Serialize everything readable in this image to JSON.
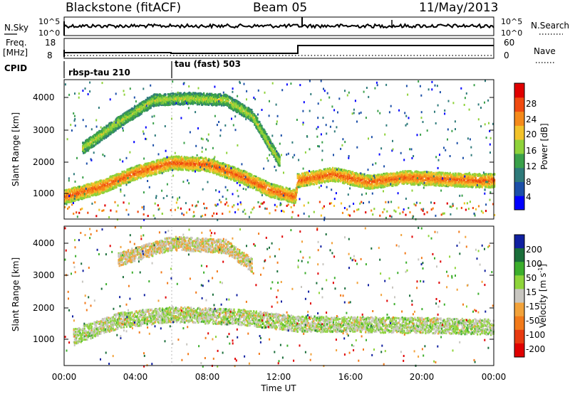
{
  "header": {
    "station": "Blackstone (fitACF)",
    "beam": "Beam 05",
    "date": "11/May/2013"
  },
  "summary_panel": {
    "nsky_label": "N.Sky",
    "nsearch_label": "N.Search",
    "noise_ticks": [
      "10^5",
      "10^0"
    ],
    "freq_label_1": "Freq.",
    "freq_label_2": "[MHz]",
    "freq_ticks": [
      "18",
      "8"
    ],
    "nave_label": "Nave",
    "nave_ticks": [
      "60",
      "0"
    ],
    "cpid_label": "CPID",
    "cpid_segments": [
      {
        "label": "rbsp-tau 210",
        "start_hour": 0
      },
      {
        "label": "tau (fast) 503",
        "start_hour": 6
      }
    ]
  },
  "power_panel": {
    "ylabel": "Slant Range [km]",
    "yticks": [
      "4000",
      "3000",
      "2000",
      "1000"
    ],
    "colorbar_label": "Power [dB]",
    "colorbar_ticks": [
      "28",
      "24",
      "20",
      "16",
      "12",
      "8",
      "4"
    ],
    "colors": [
      "#0000ff",
      "#1c4fa8",
      "#2e7a7a",
      "#3aa04a",
      "#8ed23a",
      "#f2c22a",
      "#f58a1a",
      "#f04a10",
      "#e00000"
    ]
  },
  "velocity_panel": {
    "ylabel": "Slant Range [km]",
    "yticks": [
      "4000",
      "3000",
      "2000",
      "1000"
    ],
    "colorbar_label": "Velocity [m s",
    "colorbar_label_sup": "-1",
    "colorbar_label_end": "]",
    "colorbar_ticks": [
      "200",
      "100",
      "50",
      "15",
      "-15",
      "-50",
      "-100",
      "-200"
    ],
    "colors": [
      "#1020a0",
      "#1a6e3a",
      "#3cae2c",
      "#8ed43a",
      "#c8c6c0",
      "#f2a23a",
      "#f27a1a",
      "#e83a10",
      "#e00000"
    ]
  },
  "xaxis": {
    "label": "Time UT",
    "ticks": [
      "00:00",
      "04:00",
      "08:00",
      "12:00",
      "16:00",
      "20:00",
      "00:00"
    ]
  },
  "chart_data": {
    "type": "heatmap",
    "title": "Blackstone (fitACF)",
    "x_range_hours": [
      0,
      24
    ],
    "y_range_km": [
      180,
      4500
    ],
    "xlabel": "Time UT",
    "ylabel": "Slant Range [km]",
    "power_colorbar": {
      "label": "Power [dB]",
      "range": [
        0,
        32
      ]
    },
    "velocity_colorbar": {
      "label": "Velocity [m s-1]",
      "range": [
        -250,
        250
      ]
    },
    "power_bands": [
      {
        "hours": [
          0,
          2,
          4,
          6,
          8,
          10,
          11.5,
          12.9,
          13,
          15,
          17,
          19,
          21,
          23,
          24
        ],
        "range_km": [
          900,
          1200,
          1650,
          1950,
          1900,
          1500,
          1100,
          900,
          1400,
          1600,
          1350,
          1500,
          1450,
          1400,
          1400
        ],
        "power_db": 26
      },
      {
        "hours": [
          1,
          3,
          5,
          7,
          9,
          10.5,
          12
        ],
        "range_km": [
          2400,
          3200,
          3900,
          3950,
          3900,
          3400,
          2000
        ],
        "power_db": 18
      }
    ],
    "velocity_bands": [
      {
        "hours": [
          0.5,
          3,
          6,
          10,
          13,
          20,
          24
        ],
        "range_km": [
          1100,
          1600,
          1800,
          1700,
          1500,
          1450,
          1400
        ],
        "velocity": 0
      },
      {
        "hours": [
          3,
          6,
          9,
          10.5
        ],
        "range_km": [
          3500,
          4000,
          3900,
          3300
        ],
        "velocity": -20
      }
    ]
  }
}
